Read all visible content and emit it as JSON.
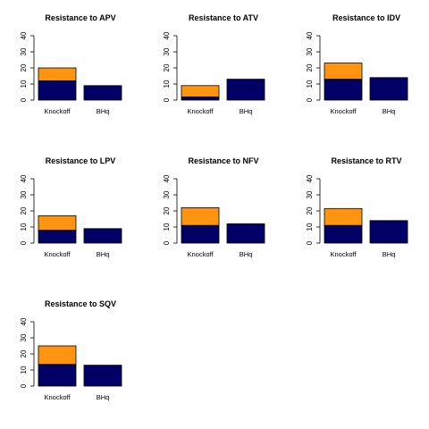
{
  "colors": {
    "selected_true": "#000066",
    "selected_false": "#FF9410",
    "stroke": "#000000"
  },
  "chart_data": [
    {
      "type": "bar",
      "stacked": true,
      "title": "Resistance to APV",
      "categories": [
        "Knockoff",
        "BHq"
      ],
      "series": [
        {
          "values": [
            12,
            9
          ]
        },
        {
          "values": [
            8,
            0
          ]
        }
      ],
      "ylim": [
        0,
        40
      ],
      "yticks": [
        0,
        10,
        20,
        30,
        40
      ],
      "grid": false
    },
    {
      "type": "bar",
      "stacked": true,
      "title": "Resistance to ATV",
      "categories": [
        "Knockoff",
        "BHq"
      ],
      "series": [
        {
          "values": [
            2,
            13
          ]
        },
        {
          "values": [
            7,
            0
          ]
        }
      ],
      "ylim": [
        0,
        40
      ],
      "yticks": [
        0,
        10,
        20,
        30,
        40
      ],
      "grid": false
    },
    {
      "type": "bar",
      "stacked": true,
      "title": "Resistance to IDV",
      "categories": [
        "Knockoff",
        "BHq"
      ],
      "series": [
        {
          "values": [
            13,
            14
          ]
        },
        {
          "values": [
            10,
            0
          ]
        }
      ],
      "ylim": [
        0,
        40
      ],
      "yticks": [
        0,
        10,
        20,
        30,
        40
      ],
      "grid": false
    },
    {
      "type": "bar",
      "stacked": true,
      "title": "Resistance to LPV",
      "categories": [
        "Knockoff",
        "BHq"
      ],
      "series": [
        {
          "values": [
            8,
            9
          ]
        },
        {
          "values": [
            9,
            0
          ]
        }
      ],
      "ylim": [
        0,
        40
      ],
      "yticks": [
        0,
        10,
        20,
        30,
        40
      ],
      "grid": false
    },
    {
      "type": "bar",
      "stacked": true,
      "title": "Resistance to NFV",
      "categories": [
        "Knockoff",
        "BHq"
      ],
      "series": [
        {
          "values": [
            11,
            12
          ]
        },
        {
          "values": [
            11,
            0
          ]
        }
      ],
      "ylim": [
        0,
        40
      ],
      "yticks": [
        0,
        10,
        20,
        30,
        40
      ],
      "grid": false
    },
    {
      "type": "bar",
      "stacked": true,
      "title": "Resistance to RTV",
      "categories": [
        "Knockoff",
        "BHq"
      ],
      "series": [
        {
          "values": [
            11,
            14
          ]
        },
        {
          "values": [
            10.5,
            0
          ]
        }
      ],
      "ylim": [
        0,
        40
      ],
      "yticks": [
        0,
        10,
        20,
        30,
        40
      ],
      "grid": false
    },
    {
      "type": "bar",
      "stacked": true,
      "title": "Resistance to SQV",
      "categories": [
        "Knockoff",
        "BHq"
      ],
      "series": [
        {
          "values": [
            13.5,
            13
          ]
        },
        {
          "values": [
            11.5,
            0
          ]
        }
      ],
      "ylim": [
        0,
        40
      ],
      "yticks": [
        0,
        10,
        20,
        30,
        40
      ],
      "grid": false
    }
  ]
}
